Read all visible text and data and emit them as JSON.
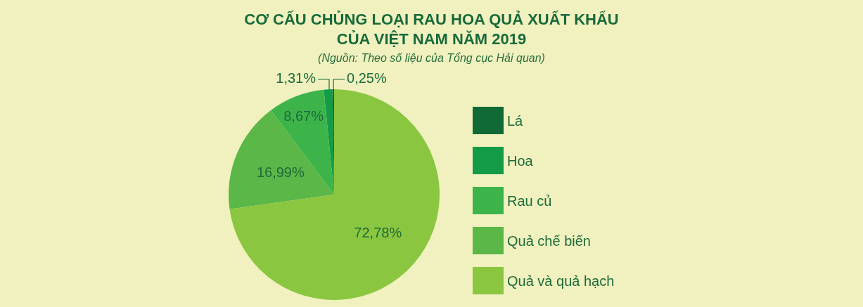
{
  "chart_data": {
    "type": "pie",
    "title": "CƠ CẤU CHỦNG LOẠI RAU HOA QUẢ XUẤT KHẨU\nCỦA VIỆT NAM NĂM 2019",
    "subtitle": "(Nguồn: Theo số liệu của Tổng cục Hải quan)",
    "categories": [
      "Lá",
      "Hoa",
      "Rau củ",
      "Quả chế biến",
      "Quả và quả hạch"
    ],
    "values": [
      0.25,
      1.31,
      8.67,
      16.99,
      72.78
    ],
    "colors": [
      "#0f6a36",
      "#139b48",
      "#3cb44a",
      "#5bb748",
      "#8bc640"
    ],
    "value_labels": [
      "0,25%",
      "1,31%",
      "8,67%",
      "16,99%",
      "72,78%"
    ],
    "legend": "right"
  }
}
